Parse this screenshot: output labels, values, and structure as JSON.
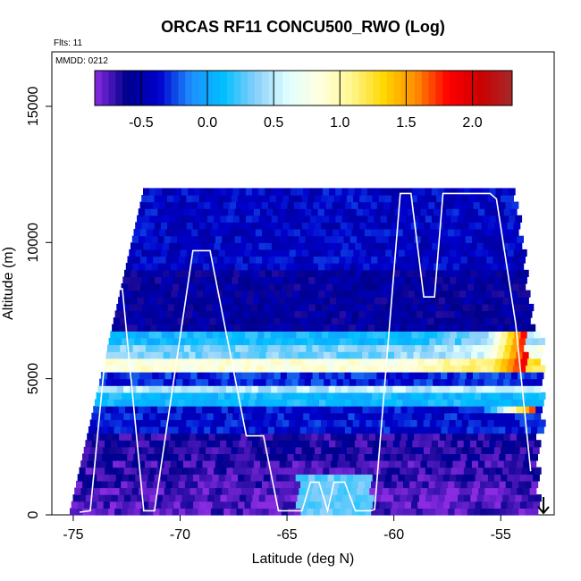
{
  "chart_data": {
    "type": "heatmap",
    "title": "ORCAS RF11 CONCU500_RWO (Log)",
    "info_lines": [
      "Flts: 11",
      "MMDD: 0212"
    ],
    "xlabel": "Latitude (deg N)",
    "ylabel": "Altitude (m)",
    "xlim": [
      -76,
      -52.5
    ],
    "ylim": [
      0,
      17000
    ],
    "x_ticks": [
      -75,
      -70,
      -65,
      -60,
      -55
    ],
    "y_ticks": [
      0,
      5000,
      10000,
      15000
    ],
    "colorbar": {
      "range": [
        -0.85,
        2.3
      ],
      "ticks": [
        -0.5,
        0.0,
        0.5,
        1.0,
        1.5,
        2.0
      ],
      "tick_labels": [
        "-0.5",
        "0.0",
        "0.5",
        "1.0",
        "1.5",
        "2.0"
      ],
      "colors": [
        "#8a2be2",
        "#00008b",
        "#0000cd",
        "#1e90ff",
        "#00bfff",
        "#87cefa",
        "#e0ffff",
        "#ffffe0",
        "#fff68f",
        "#ffd700",
        "#ff8c00",
        "#ff0000",
        "#cd0000",
        "#a52a2a"
      ]
    },
    "bands": [
      {
        "alt": [
          0,
          1000
        ],
        "value": -0.75
      },
      {
        "alt": [
          1000,
          2000
        ],
        "value": -0.7
      },
      {
        "alt": [
          2000,
          3000
        ],
        "value": -0.65
      },
      {
        "alt": [
          3000,
          4000
        ],
        "value": -0.35
      },
      {
        "alt": [
          4000,
          4400
        ],
        "value": 0.1
      },
      {
        "alt": [
          4400,
          4800
        ],
        "value": 0.5
      },
      {
        "alt": [
          4800,
          5200
        ],
        "value": -0.3
      },
      {
        "alt": [
          5200,
          5800
        ],
        "value": 0.85
      },
      {
        "alt": [
          5800,
          6200
        ],
        "value": 0.35
      },
      {
        "alt": [
          6200,
          6800
        ],
        "value": 0.1
      },
      {
        "alt": [
          6800,
          9000
        ],
        "value": -0.55
      },
      {
        "alt": [
          9000,
          12000
        ],
        "value": -0.4
      }
    ],
    "hotspots": [
      {
        "lat": [
          -56,
          -53.8
        ],
        "alt": [
          5200,
          6700
        ],
        "value": 1.9
      },
      {
        "lat": [
          -56,
          -53.5
        ],
        "alt": [
          3700,
          4000
        ],
        "value": 1.7
      }
    ],
    "flight_track": {
      "lat": [
        -74.7,
        -74.2,
        -73.2,
        -72.7,
        -71.7,
        -71.2,
        -69.4,
        -68.6,
        -66.9,
        -66.1,
        -65.4,
        -64.3,
        -63.9,
        -63.5,
        -63.1,
        -62.8,
        -62.3,
        -61.8,
        -61.1,
        -60.9,
        -59.7,
        -59.2,
        -58.6,
        -58.1,
        -57.7,
        -56.6,
        -55.5,
        -55.2,
        -54.3,
        -53.6
      ],
      "alt": [
        100,
        150,
        8300,
        8300,
        150,
        150,
        9700,
        9700,
        2900,
        2900,
        150,
        150,
        1200,
        1200,
        150,
        1200,
        1200,
        150,
        150,
        200,
        11800,
        11800,
        8000,
        8000,
        11800,
        11800,
        11800,
        11600,
        7000,
        1600
      ]
    },
    "arrow_lat": -53
  }
}
